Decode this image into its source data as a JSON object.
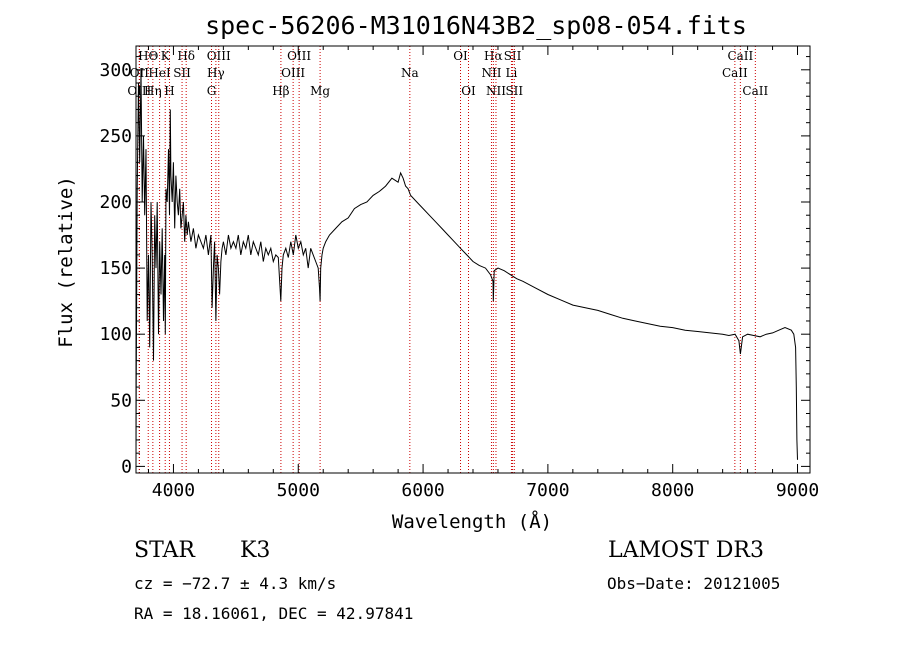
{
  "chart_data": {
    "type": "line",
    "title": "spec-56206-M31016N43B2_sp08-054.fits",
    "xlabel": "Wavelength (Å)",
    "ylabel": "Flux (relative)",
    "xlim": [
      3700,
      9100
    ],
    "ylim": [
      -5,
      318
    ],
    "xticks": [
      4000,
      5000,
      6000,
      7000,
      8000,
      9000
    ],
    "yticks": [
      0,
      50,
      100,
      150,
      200,
      250,
      300
    ],
    "series": [
      {
        "name": "flux",
        "x": [
          3700,
          3702,
          3710,
          3720,
          3730,
          3740,
          3750,
          3760,
          3770,
          3780,
          3790,
          3800,
          3810,
          3820,
          3830,
          3840,
          3850,
          3860,
          3870,
          3880,
          3890,
          3900,
          3910,
          3920,
          3930,
          3935,
          3940,
          3950,
          3960,
          3968,
          3975,
          3980,
          3990,
          4000,
          4010,
          4020,
          4030,
          4040,
          4050,
          4060,
          4070,
          4080,
          4090,
          4100,
          4110,
          4120,
          4140,
          4160,
          4180,
          4200,
          4220,
          4240,
          4260,
          4280,
          4300,
          4310,
          4320,
          4330,
          4340,
          4350,
          4360,
          4370,
          4380,
          4390,
          4400,
          4420,
          4440,
          4460,
          4480,
          4500,
          4520,
          4540,
          4560,
          4580,
          4600,
          4620,
          4640,
          4660,
          4680,
          4700,
          4720,
          4740,
          4760,
          4780,
          4800,
          4820,
          4840,
          4860,
          4870,
          4880,
          4900,
          4920,
          4940,
          4960,
          4980,
          5000,
          5020,
          5040,
          5060,
          5080,
          5100,
          5120,
          5140,
          5160,
          5170,
          5175,
          5180,
          5190,
          5200,
          5220,
          5250,
          5300,
          5350,
          5400,
          5450,
          5500,
          5550,
          5600,
          5650,
          5700,
          5750,
          5800,
          5820,
          5840,
          5860,
          5880,
          5900,
          5950,
          6000,
          6050,
          6100,
          6150,
          6200,
          6250,
          6300,
          6350,
          6400,
          6450,
          6500,
          6540,
          6560,
          6563,
          6570,
          6600,
          6650,
          6700,
          6750,
          6800,
          6900,
          7000,
          7100,
          7200,
          7300,
          7400,
          7500,
          7600,
          7700,
          7800,
          7900,
          8000,
          8100,
          8200,
          8300,
          8400,
          8450,
          8500,
          8530,
          8542,
          8560,
          8600,
          8650,
          8700,
          8750,
          8800,
          8850,
          8900,
          8950,
          8970,
          8985,
          8990,
          8995,
          9000
        ],
        "y": [
          0,
          60,
          210,
          290,
          230,
          300,
          200,
          250,
          190,
          240,
          110,
          160,
          90,
          200,
          160,
          80,
          190,
          150,
          200,
          100,
          170,
          130,
          180,
          110,
          160,
          100,
          210,
          200,
          240,
          190,
          270,
          220,
          200,
          230,
          180,
          220,
          200,
          190,
          210,
          180,
          190,
          200,
          170,
          190,
          175,
          185,
          170,
          180,
          165,
          175,
          170,
          165,
          175,
          160,
          175,
          120,
          150,
          170,
          110,
          160,
          150,
          130,
          155,
          165,
          170,
          160,
          175,
          165,
          170,
          165,
          175,
          160,
          170,
          165,
          175,
          160,
          170,
          165,
          160,
          170,
          155,
          165,
          160,
          165,
          155,
          160,
          158,
          125,
          150,
          160,
          165,
          158,
          170,
          160,
          175,
          165,
          170,
          160,
          165,
          150,
          165,
          160,
          155,
          150,
          135,
          125,
          150,
          160,
          165,
          170,
          175,
          180,
          185,
          188,
          195,
          198,
          200,
          205,
          208,
          212,
          218,
          215,
          222,
          218,
          212,
          210,
          205,
          200,
          195,
          190,
          185,
          180,
          175,
          170,
          165,
          160,
          155,
          152,
          150,
          145,
          140,
          125,
          148,
          150,
          148,
          145,
          142,
          140,
          135,
          130,
          126,
          122,
          120,
          118,
          115,
          112,
          110,
          108,
          106,
          105,
          103,
          102,
          101,
          100,
          99,
          100,
          95,
          85,
          98,
          100,
          99,
          98,
          100,
          101,
          103,
          105,
          103,
          100,
          90,
          60,
          20,
          5
        ]
      }
    ],
    "line_markers": [
      {
        "label": "HΘ",
        "wavelength": 3798,
        "row": 0
      },
      {
        "label": "OII",
        "wavelength": 3727,
        "row": 1
      },
      {
        "label": "OIII",
        "wavelength": 3727,
        "row": 2
      },
      {
        "label": "K",
        "wavelength": 3934,
        "row": 0
      },
      {
        "label": "HeI",
        "wavelength": 3889,
        "row": 1
      },
      {
        "label": "Hη",
        "wavelength": 3835,
        "row": 2
      },
      {
        "label": "H",
        "wavelength": 3968,
        "row": 2
      },
      {
        "label": "Hδ",
        "wavelength": 4102,
        "row": 0
      },
      {
        "label": "SII",
        "wavelength": 4069,
        "row": 1
      },
      {
        "label": "OIII",
        "wavelength": 4363,
        "row": 0
      },
      {
        "label": "Hγ",
        "wavelength": 4340,
        "row": 1
      },
      {
        "label": "G",
        "wavelength": 4305,
        "row": 2
      },
      {
        "label": "Hβ",
        "wavelength": 4861,
        "row": 2
      },
      {
        "label": "OIII",
        "wavelength": 5007,
        "row": 0
      },
      {
        "label": "OIII",
        "wavelength": 4959,
        "row": 1
      },
      {
        "label": "Mg",
        "wavelength": 5175,
        "row": 2
      },
      {
        "label": "Na",
        "wavelength": 5894,
        "row": 1
      },
      {
        "label": "OI",
        "wavelength": 6300,
        "row": 0
      },
      {
        "label": "OI",
        "wavelength": 6364,
        "row": 2
      },
      {
        "label": "Hα",
        "wavelength": 6563,
        "row": 0
      },
      {
        "label": "SII",
        "wavelength": 6717,
        "row": 0
      },
      {
        "label": "NII",
        "wavelength": 6548,
        "row": 1
      },
      {
        "label": "Li",
        "wavelength": 6708,
        "row": 1
      },
      {
        "label": "NII",
        "wavelength": 6584,
        "row": 2
      },
      {
        "label": "SII",
        "wavelength": 6731,
        "row": 2
      },
      {
        "label": "CaII",
        "wavelength": 8542,
        "row": 0
      },
      {
        "label": "CaII",
        "wavelength": 8498,
        "row": 1
      },
      {
        "label": "CaII",
        "wavelength": 8662,
        "row": 2
      }
    ]
  },
  "info": {
    "class": "STAR",
    "subclass": "K3",
    "survey": "LAMOST DR3",
    "cz": "cz = −72.7 ± 4.3 km/s",
    "obs_date": "Obs−Date: 20121005",
    "radec": "RA =  18.16061, DEC =  42.97841"
  },
  "colors": {
    "axes": "#000000",
    "spectrum": "#000000",
    "marker_line": "#cc0000"
  }
}
